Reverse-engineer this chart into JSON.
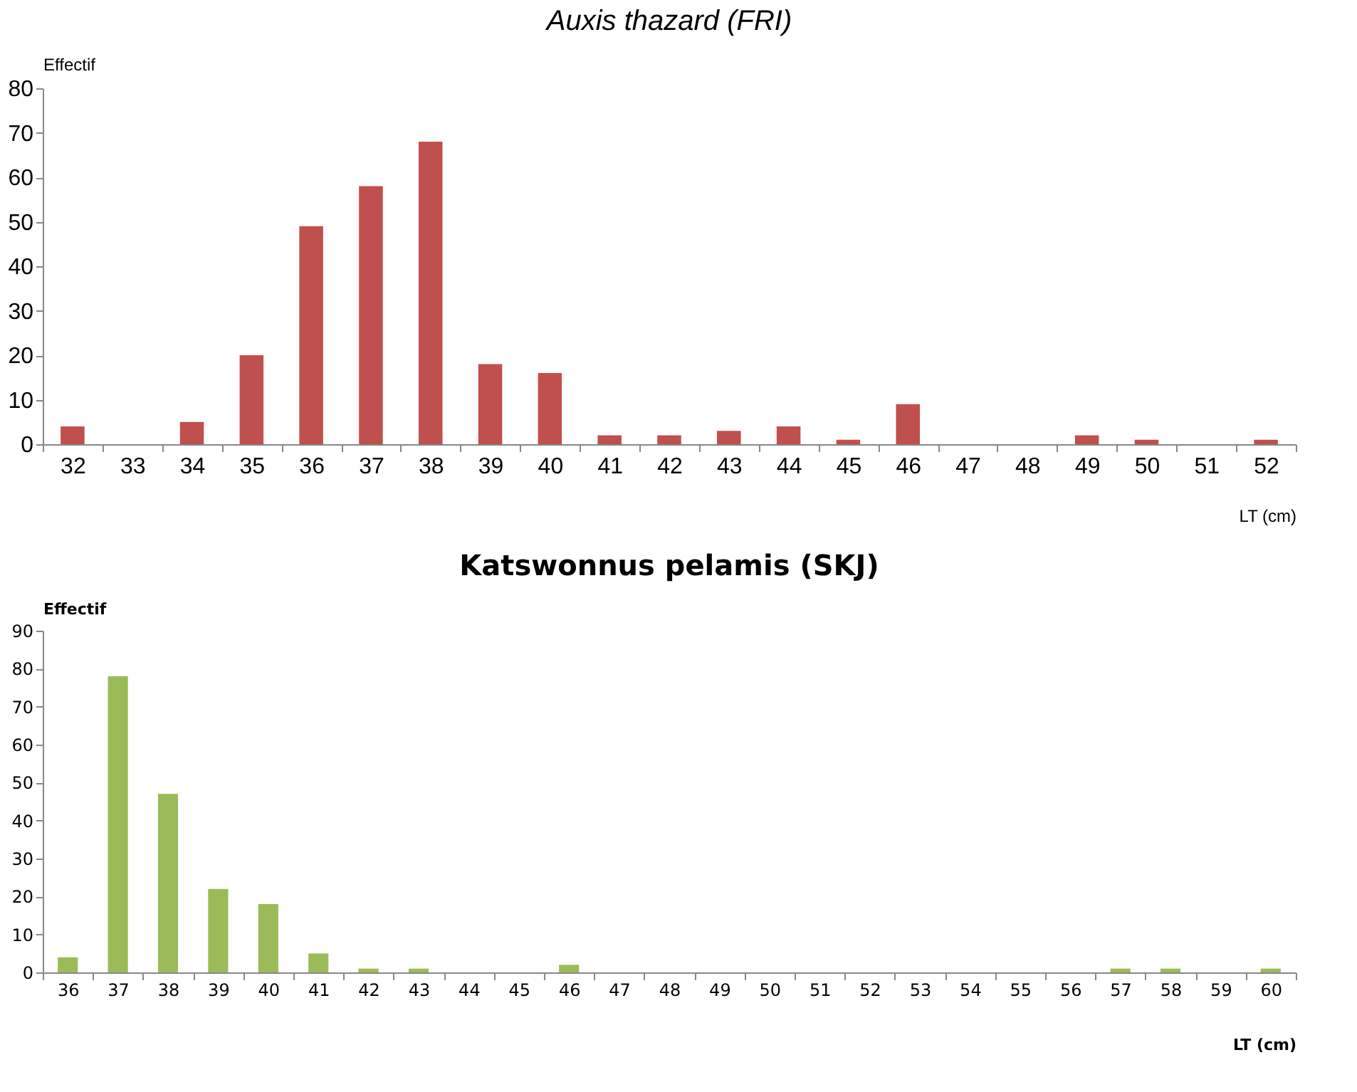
{
  "chart_data": [
    {
      "type": "bar",
      "title": "Auxis thazard (FRI)",
      "xlabel": "LT (cm)",
      "ylabel": "Effectif",
      "categories": [
        "32",
        "33",
        "34",
        "35",
        "36",
        "37",
        "38",
        "39",
        "40",
        "41",
        "42",
        "43",
        "44",
        "45",
        "46",
        "47",
        "48",
        "49",
        "50",
        "51",
        "52"
      ],
      "values": [
        4,
        0,
        5,
        20,
        49,
        58,
        68,
        18,
        16,
        2,
        2,
        3,
        4,
        1,
        9,
        0,
        0,
        2,
        1,
        0,
        1
      ],
      "color": "#c0504d",
      "ylim": [
        0,
        80
      ],
      "yticks": [
        0,
        10,
        20,
        30,
        40,
        50,
        60,
        70,
        80
      ],
      "grid": false
    },
    {
      "type": "bar",
      "title": "Katswonnus pelamis (SKJ)",
      "xlabel": "LT (cm)",
      "ylabel": "Effectif",
      "categories": [
        "36",
        "37",
        "38",
        "39",
        "40",
        "41",
        "42",
        "43",
        "44",
        "45",
        "46",
        "47",
        "48",
        "49",
        "50",
        "51",
        "52",
        "53",
        "54",
        "55",
        "56",
        "57",
        "58",
        "59",
        "60"
      ],
      "values": [
        4,
        78,
        47,
        22,
        18,
        5,
        1,
        1,
        0,
        0,
        2,
        0,
        0,
        0,
        0,
        0,
        0,
        0,
        0,
        0,
        0,
        1,
        1,
        0,
        1
      ],
      "color": "#9bbb59",
      "ylim": [
        0,
        90
      ],
      "yticks": [
        0,
        10,
        20,
        30,
        40,
        50,
        60,
        70,
        80,
        90
      ],
      "grid": false
    }
  ]
}
